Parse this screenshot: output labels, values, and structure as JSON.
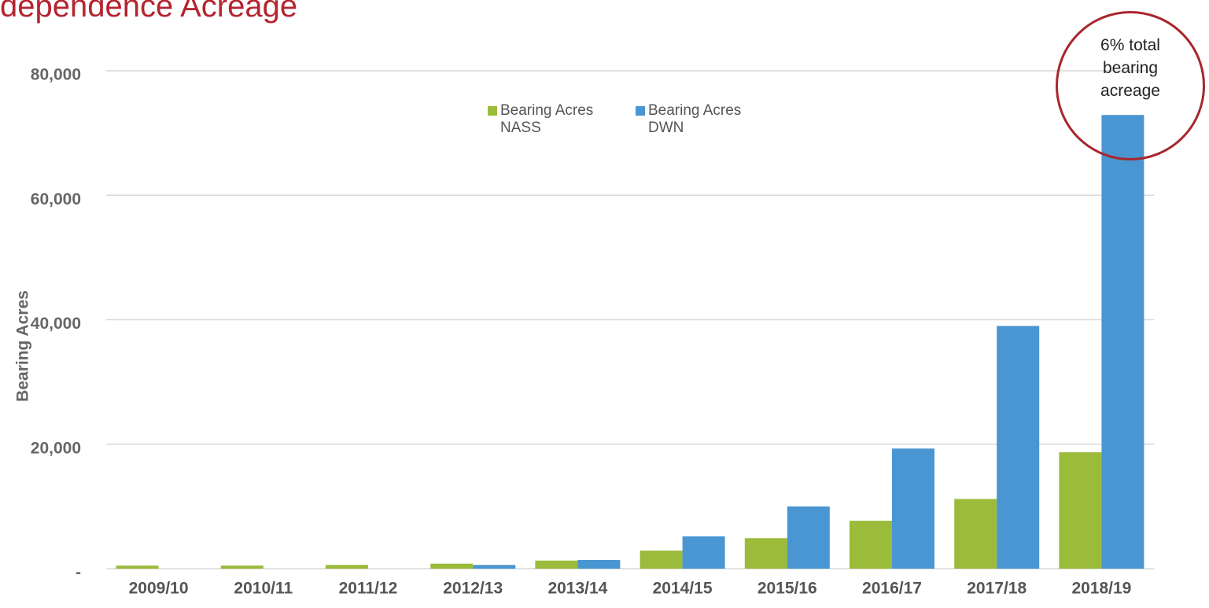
{
  "chart_data": {
    "type": "bar",
    "title": "dependence Acreage",
    "y_label": "Bearing Acres",
    "annotation": "6% total bearing acreage",
    "categories": [
      "2009/10",
      "2010/11",
      "2011/12",
      "2012/13",
      "2013/14",
      "2014/15",
      "2015/16",
      "2016/17",
      "2017/18",
      "2018/19"
    ],
    "series": [
      {
        "name": "Bearing Acres NASS",
        "color": "#9bbb3b",
        "values": [
          500,
          500,
          600,
          800,
          1300,
          2900,
          4900,
          7700,
          11200,
          18700
        ]
      },
      {
        "name": "Bearing Acres DWN",
        "color": "#4a96d2",
        "values": [
          0,
          0,
          0,
          600,
          1400,
          5200,
          10000,
          19300,
          39000,
          72900
        ]
      }
    ],
    "ylim": [
      0,
      80000
    ],
    "yticks": [
      {
        "value": 0,
        "label": "-"
      },
      {
        "value": 20000,
        "label": "20,000"
      },
      {
        "value": 40000,
        "label": "40,000"
      },
      {
        "value": 60000,
        "label": "60,000"
      },
      {
        "value": 80000,
        "label": "80,000"
      }
    ],
    "grid": true
  }
}
